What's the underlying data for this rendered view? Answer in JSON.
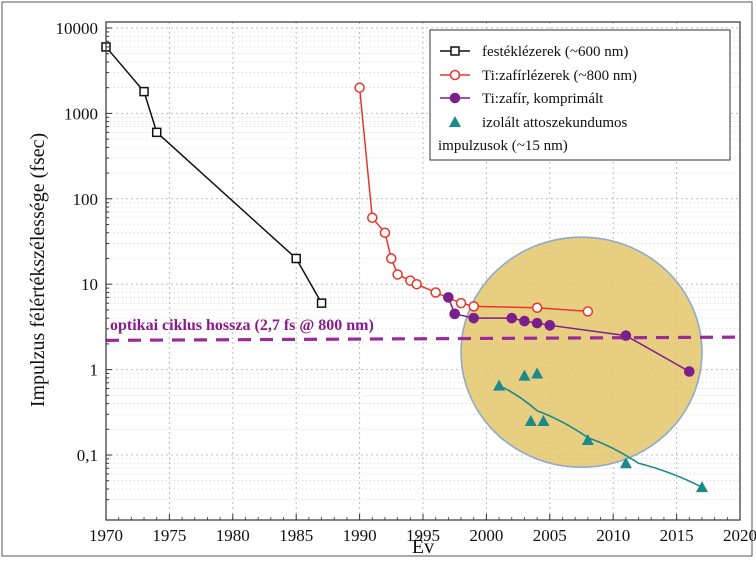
{
  "chart_data": {
    "type": "line",
    "xlabel": "Év",
    "ylabel": "Impulzus félértékszélessége (fsec)",
    "xlim": [
      1970,
      2020
    ],
    "ylim": [
      0.03,
      10000
    ],
    "yscale": "log",
    "grid": true,
    "legend_position": "top-right",
    "x_ticks": [
      1970,
      1975,
      1980,
      1985,
      1990,
      1995,
      2000,
      2005,
      2010,
      2015,
      2020
    ],
    "x_tick_labels": [
      "1970",
      "1975",
      "1980",
      "1985",
      "1990",
      "1995",
      "2000",
      "2005",
      "2010",
      "2015",
      "2020"
    ],
    "y_ticks": [
      0.1,
      1,
      10,
      100,
      1000,
      10000
    ],
    "y_tick_labels": [
      "0,1",
      "1",
      "10",
      "100",
      "1000",
      "10000"
    ],
    "series": [
      {
        "name": "festéklézerek (~600 nm)",
        "color": "#111111",
        "marker": "square-open",
        "x": [
          1970,
          1973,
          1974,
          1985,
          1987
        ],
        "y": [
          6000,
          1800,
          600,
          20,
          6
        ]
      },
      {
        "name": "Ti:zafírlézerek (~800 nm)",
        "color": "#e8352b",
        "marker": "circle-open",
        "x": [
          1990,
          1991,
          1992,
          1992.5,
          1993,
          1994,
          1994.5,
          1996,
          1998,
          1999,
          2004,
          2008
        ],
        "y": [
          2000,
          60,
          40,
          20,
          13,
          11,
          10,
          8,
          6,
          5.5,
          5.3,
          4.8
        ]
      },
      {
        "name": "Ti:zafír, komprimált",
        "color": "#7b1f8c",
        "marker": "circle-filled",
        "x": [
          1997,
          1997.5,
          1999,
          2002,
          2003,
          2004,
          2005,
          2011,
          2016
        ],
        "y": [
          7,
          4.5,
          4.0,
          4.0,
          3.7,
          3.5,
          3.3,
          2.5,
          0.95
        ]
      },
      {
        "name": "izolált attoszekundumos impulzusok (~15 nm)",
        "color": "#1a8a8a",
        "marker": "triangle-filled",
        "x": [
          2001,
          2003,
          2003.5,
          2004,
          2004.5,
          2008,
          2011,
          2017
        ],
        "y": [
          0.65,
          0.85,
          0.25,
          0.9,
          0.25,
          0.15,
          0.08,
          0.042
        ],
        "trend_x": [
          2001,
          2004,
          2008,
          2012,
          2017
        ],
        "trend_y": [
          0.65,
          0.33,
          0.16,
          0.08,
          0.042
        ]
      }
    ],
    "legend_entries": [
      "festéklézerek (~600 nm)",
      "Ti:zafírlézerek (~800 nm)",
      "Ti:zafír, komprimált",
      "izolált attoszekundumos",
      "impulzusok (~15 nm)"
    ],
    "reference_line": {
      "label": "optikai ciklus hossza (2,7 fs @ 800 nm)",
      "y_start": 2.2,
      "y_end": 2.4,
      "color": "#9b2a9b"
    },
    "highlight": {
      "shape": "ellipse",
      "fill": "#e3c56a",
      "stroke": "#8eaacc",
      "center_x": 2007.5,
      "center_y": 1.6,
      "x_radius": 9.5
    },
    "colors": {
      "grid": "#bcbcbc",
      "frame": "#333333"
    }
  }
}
